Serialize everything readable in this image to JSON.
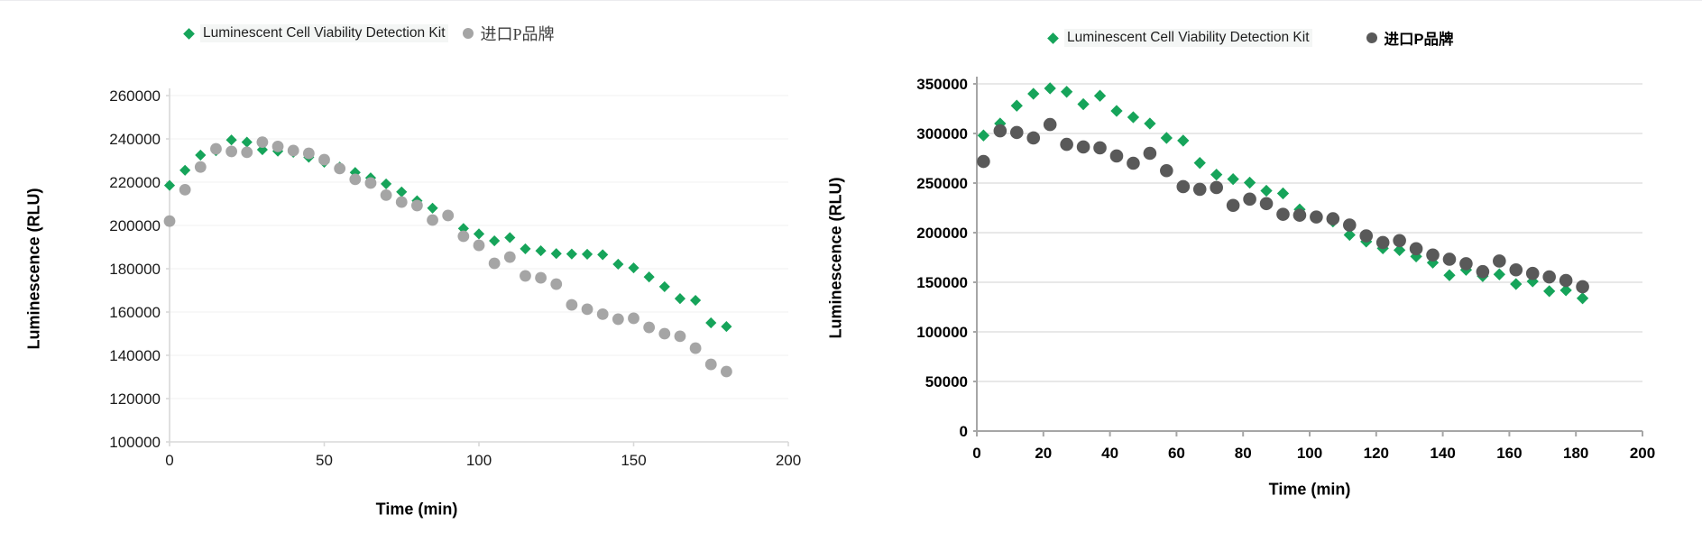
{
  "page": {
    "background": "#ffffff"
  },
  "chart_data": [
    {
      "type": "scatter",
      "title": "",
      "xlabel": "Time (min)",
      "ylabel": "Luminescence (RLU)",
      "xlim": [
        0,
        200
      ],
      "xtick": 50,
      "ylim": [
        100000,
        260000
      ],
      "ytick": 20000,
      "grid": "on",
      "legend_position": "top",
      "series": [
        {
          "name": "Luminescent Cell Viability Detection Kit",
          "marker": "diamond",
          "color": "#16A45A",
          "x": [
            0,
            5,
            10,
            15,
            20,
            25,
            30,
            35,
            40,
            45,
            50,
            55,
            60,
            65,
            70,
            75,
            80,
            85,
            90,
            95,
            100,
            105,
            110,
            115,
            120,
            125,
            130,
            135,
            140,
            145,
            150,
            155,
            160,
            165,
            170,
            175,
            180
          ],
          "y": [
            218500,
            225500,
            232500,
            234500,
            239500,
            238500,
            235000,
            234300,
            233800,
            231500,
            229200,
            227000,
            224500,
            222000,
            219200,
            215500,
            211400,
            208000,
            204600,
            198600,
            196100,
            192900,
            194400,
            189200,
            188300,
            187000,
            186800,
            186700,
            186500,
            182100,
            180400,
            176200,
            171700,
            166200,
            165400,
            155000,
            153300
          ]
        },
        {
          "name": "进口P品牌",
          "marker": "circle",
          "color": "#A5A5A5",
          "x": [
            0,
            5,
            10,
            15,
            20,
            25,
            30,
            35,
            40,
            45,
            50,
            55,
            60,
            65,
            70,
            75,
            80,
            85,
            90,
            95,
            100,
            105,
            110,
            115,
            120,
            125,
            130,
            135,
            140,
            145,
            150,
            155,
            160,
            165,
            170,
            175,
            180
          ],
          "y": [
            202000,
            216500,
            227000,
            235400,
            234200,
            233800,
            238500,
            236500,
            234600,
            233300,
            230400,
            226300,
            221300,
            219600,
            214000,
            210800,
            209200,
            202500,
            204600,
            195000,
            190800,
            182500,
            185400,
            176700,
            175800,
            172900,
            163300,
            161300,
            159000,
            156700,
            157100,
            152900,
            150000,
            148800,
            143300,
            135800,
            132500
          ]
        }
      ]
    },
    {
      "type": "scatter",
      "title": "",
      "xlabel": "Time  (min)",
      "ylabel": "Luminescence  (RLU)",
      "xlim": [
        0,
        200
      ],
      "xtick": 20,
      "ylim": [
        0,
        350000
      ],
      "ytick": 50000,
      "grid": "on",
      "legend_position": "top",
      "series": [
        {
          "name": "Luminescent Cell Viability Detection Kit",
          "marker": "diamond",
          "color": "#16A45A",
          "x": [
            2,
            7,
            12,
            17,
            22,
            27,
            32,
            37,
            42,
            47,
            52,
            57,
            62,
            67,
            72,
            77,
            82,
            87,
            92,
            97,
            102,
            107,
            112,
            117,
            122,
            127,
            132,
            137,
            142,
            147,
            152,
            157,
            162,
            167,
            172,
            177,
            182
          ],
          "y": [
            298000,
            310000,
            328000,
            340000,
            345500,
            342000,
            329500,
            338000,
            322700,
            316400,
            310000,
            295500,
            292800,
            270300,
            258500,
            254000,
            250400,
            242300,
            239600,
            223400,
            216000,
            211300,
            197700,
            191000,
            184200,
            182400,
            176000,
            169800,
            157100,
            162500,
            156200,
            158000,
            148200,
            150900,
            141000,
            141900,
            133900
          ]
        },
        {
          "name": "进口P品牌",
          "marker": "circle",
          "color": "#595959",
          "x": [
            2,
            7,
            12,
            17,
            22,
            27,
            32,
            37,
            42,
            47,
            52,
            57,
            62,
            67,
            72,
            77,
            82,
            87,
            92,
            97,
            102,
            107,
            112,
            117,
            122,
            127,
            132,
            137,
            142,
            147,
            152,
            157,
            162,
            167,
            172,
            177,
            182
          ],
          "y": [
            271800,
            302700,
            301000,
            295500,
            309000,
            289000,
            286400,
            285500,
            277300,
            270000,
            280000,
            262500,
            246400,
            243700,
            245500,
            227500,
            233800,
            229300,
            218500,
            217600,
            215800,
            214000,
            207700,
            196800,
            190100,
            192000,
            183800,
            177500,
            173200,
            168700,
            160700,
            171400,
            162500,
            158900,
            155400,
            151800,
            145500
          ]
        }
      ]
    }
  ]
}
